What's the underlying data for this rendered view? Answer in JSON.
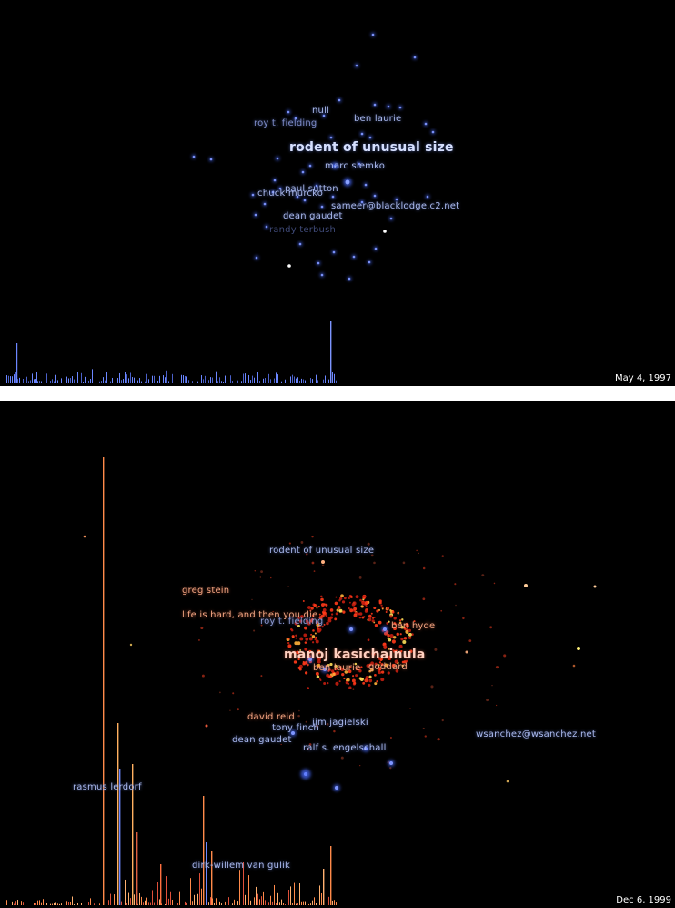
{
  "panels": [
    {
      "date": "May 4, 1997",
      "labels": {
        "null": "null",
        "roy_fielding": "roy t. fielding",
        "ben_laurie": "ben laurie",
        "rodent": "rodent of unusual size",
        "marc_slemko": "marc slemko",
        "paul_sutton": "paul sutton",
        "chuck_murcko": "chuck murcko",
        "sameer": "sameer@blacklodge.c2.net",
        "dean_gaudet": "dean gaudet",
        "faded": "randy terbush"
      }
    },
    {
      "date": "Dec 6, 1999",
      "labels": {
        "rodent": "rodent of unusual size",
        "greg_stein": "greg stein",
        "life_is_hard": "life is hard, and then you die",
        "roy_fielding": "roy t. fielding",
        "ben_hyde": "ben hyde",
        "big_name": "manoj kasichainula",
        "ben_laurie": "ben laurie",
        "goddard": "goddard",
        "david_reid": "david reid",
        "jim_jagielski": "jim jagielski",
        "tony_finch": "tony finch",
        "dean_gaudet": "dean gaudet",
        "ralf": "ralf  s.  engelschall",
        "wsanchez": "wsanchez@wsanchez.net",
        "rasmus": "rasmus lerdorf",
        "dirk": "dirk-willem van gulik"
      }
    }
  ],
  "colors": {
    "background": "#000000",
    "blue_node": "#4a6cff",
    "blue_label": "#a9b8ec",
    "orange_label": "#f2a582",
    "red_node": "#e23a1e",
    "bar_blue": "#6b86ff",
    "bar_orange": "#ff8a4a"
  }
}
